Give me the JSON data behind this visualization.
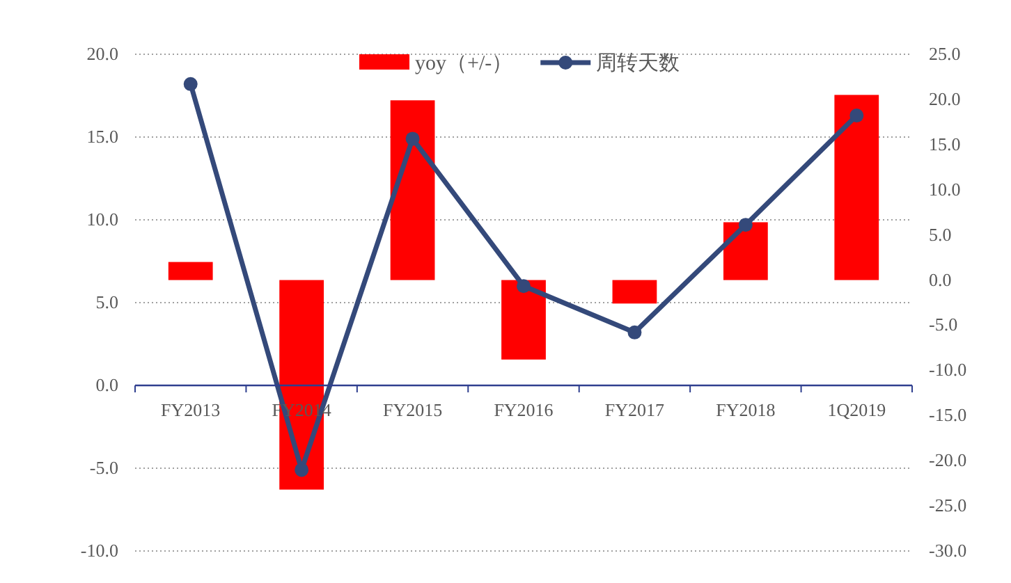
{
  "chart_data": {
    "type": "bar",
    "categories": [
      "FY2013",
      "FY2014",
      "FY2015",
      "FY2016",
      "FY2017",
      "FY2018",
      "1Q2019"
    ],
    "series": [
      {
        "name": "yoy（+/-）",
        "axis": "y2",
        "color": "#ff0000",
        "values": [
          2.0,
          -23.2,
          19.9,
          -8.8,
          -2.6,
          6.4,
          20.5
        ]
      },
      {
        "name": "周转天数",
        "type": "line",
        "axis": "y",
        "color": "#34497a",
        "marker": "circle",
        "line_style": "solid",
        "values": [
          18.2,
          -5.1,
          14.9,
          6.0,
          3.2,
          9.7,
          16.3
        ]
      }
    ],
    "ylim": [
      -10,
      20
    ],
    "yticks": [
      {
        "value": -10,
        "label": "-10.0"
      },
      {
        "value": -5,
        "label": "-5.0"
      },
      {
        "value": 0,
        "label": "0.0"
      },
      {
        "value": 5,
        "label": "5.0"
      },
      {
        "value": 10,
        "label": "10.0"
      },
      {
        "value": 15,
        "label": "15.0"
      },
      {
        "value": 20,
        "label": "20.0"
      }
    ],
    "y2lim": [
      -30,
      25
    ],
    "y2ticks": [
      {
        "value": -30,
        "label": "-30.0"
      },
      {
        "value": -25,
        "label": "-25.0"
      },
      {
        "value": -20,
        "label": "-20.0"
      },
      {
        "value": -15,
        "label": "-15.0"
      },
      {
        "value": -10,
        "label": "-10.0"
      },
      {
        "value": -5,
        "label": "-5.0"
      },
      {
        "value": 0,
        "label": "0.0"
      },
      {
        "value": 5,
        "label": "5.0"
      },
      {
        "value": 10,
        "label": "10.0"
      },
      {
        "value": 15,
        "label": "15.0"
      },
      {
        "value": 20,
        "label": "20.0"
      },
      {
        "value": 25,
        "label": "25.0"
      }
    ],
    "grid": "y",
    "legend": "top"
  }
}
